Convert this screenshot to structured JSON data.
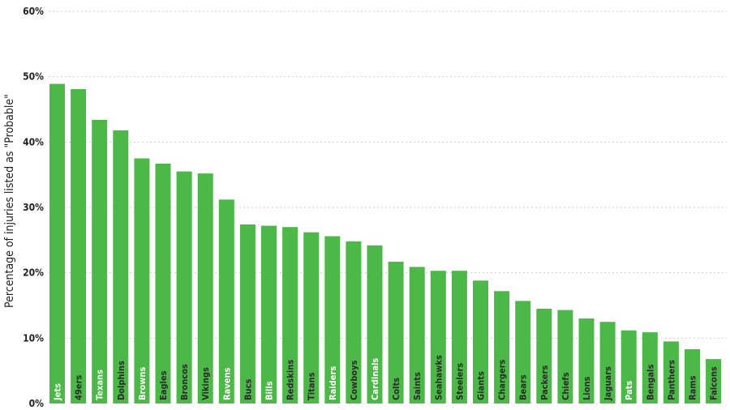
{
  "chart_data": {
    "type": "bar",
    "title": "",
    "xlabel": "",
    "ylabel": "Percentage of injuries listed as \"Probable\"",
    "ylim": [
      0,
      60
    ],
    "yticks": [
      "0%",
      "10%",
      "20%",
      "30%",
      "40%",
      "50%",
      "60%"
    ],
    "grid": true,
    "bar_color": "#4cb848",
    "categories": [
      "Jets",
      "49ers",
      "Texans",
      "Dolphins",
      "Browns",
      "Eagles",
      "Broncos",
      "Vikings",
      "Ravens",
      "Bucs",
      "Bills",
      "Redskins",
      "Titans",
      "Raiders",
      "Cowboys",
      "Cardinals",
      "Colts",
      "Saints",
      "Seahawks",
      "Steelers",
      "Giants",
      "Chargers",
      "Bears",
      "Packers",
      "Chiefs",
      "Lions",
      "Jaguars",
      "Pats",
      "Bengals",
      "Panthers",
      "Rams",
      "Falcons"
    ],
    "label_colors": [
      "white",
      "dark",
      "white",
      "dark",
      "white",
      "dark",
      "dark",
      "dark",
      "white",
      "dark",
      "white",
      "dark",
      "dark",
      "white",
      "dark",
      "white",
      "dark",
      "dark",
      "dark",
      "dark",
      "dark",
      "dark",
      "dark",
      "dark",
      "dark",
      "dark",
      "dark",
      "white",
      "dark",
      "dark",
      "dark",
      "dark"
    ],
    "values": [
      48.9,
      48.1,
      43.4,
      41.8,
      37.5,
      36.7,
      35.5,
      35.2,
      31.2,
      27.4,
      27.2,
      27.0,
      26.2,
      25.6,
      24.8,
      24.2,
      21.7,
      20.9,
      20.3,
      20.3,
      18.8,
      17.2,
      15.7,
      14.5,
      14.3,
      13.0,
      12.5,
      11.2,
      10.9,
      9.5,
      8.3,
      6.8
    ]
  }
}
